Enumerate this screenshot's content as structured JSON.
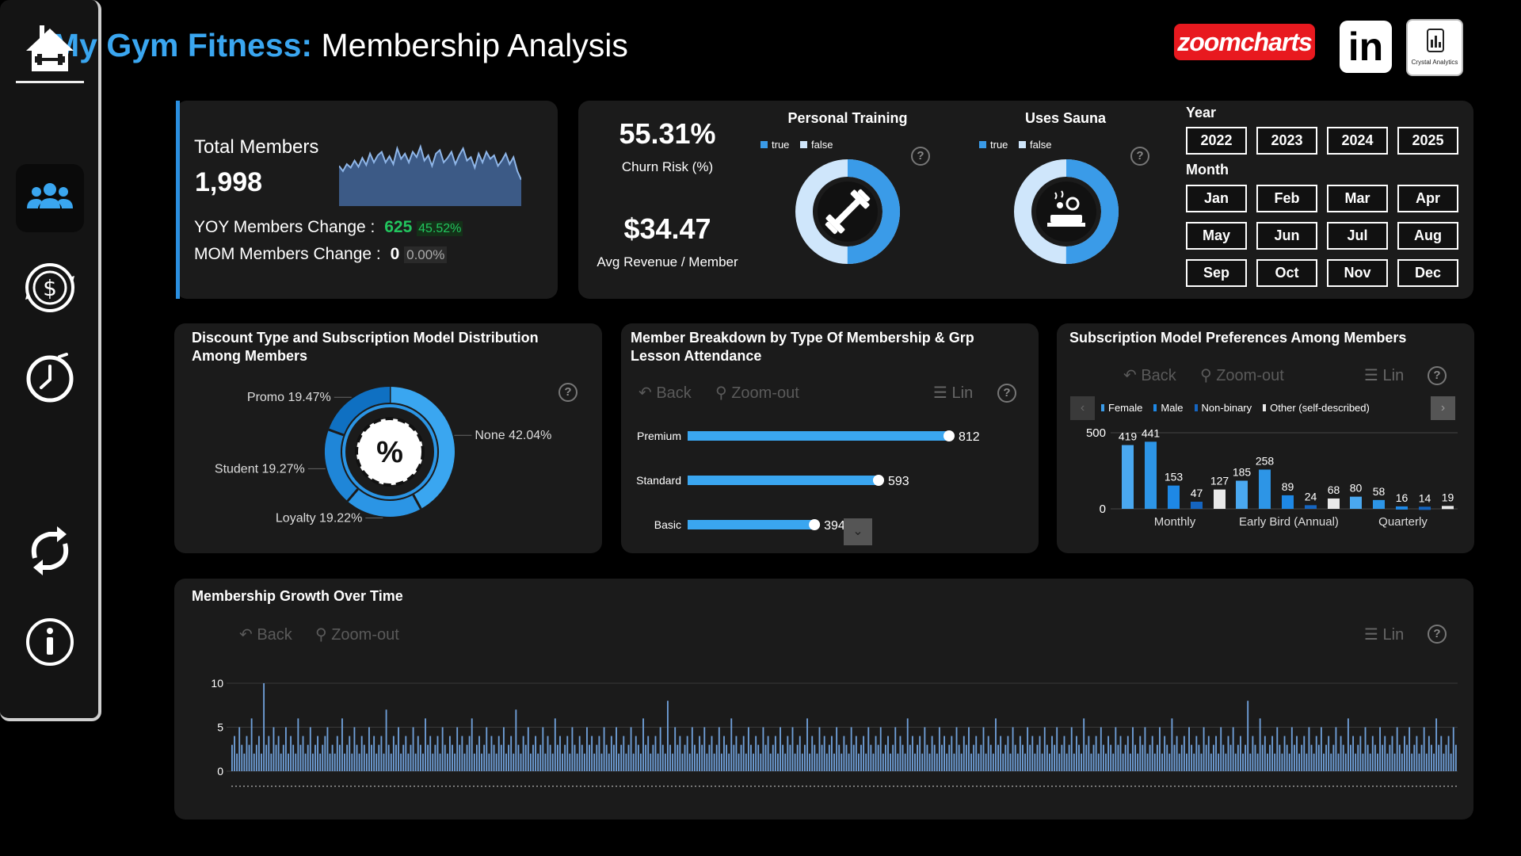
{
  "header": {
    "title_accent": "My Gym Fitness:",
    "title_rest": "Membership Analysis",
    "logos": {
      "zoomcharts": "zoomcharts",
      "linkedin": "in",
      "crystal": "Crystal Analytics"
    }
  },
  "sidebar": {
    "items": [
      {
        "name": "home",
        "icon": "home-dumbbell-icon"
      },
      {
        "name": "members",
        "icon": "users-icon",
        "selected": true
      },
      {
        "name": "revenue",
        "icon": "dollar-cycle-icon"
      },
      {
        "name": "time",
        "icon": "clock-icon"
      },
      {
        "name": "refresh",
        "icon": "refresh-icon"
      },
      {
        "name": "info",
        "icon": "info-icon"
      }
    ]
  },
  "kpi": {
    "total_label": "Total Members",
    "total_value": "1,998",
    "yoy_label": "YOY Members Change :",
    "yoy_value": "625",
    "yoy_pct": "45.52%",
    "mom_label": "MOM Members Change :",
    "mom_value": "0",
    "mom_pct": "0.00%",
    "sparkline": [
      46,
      40,
      48,
      44,
      52,
      45,
      55,
      47,
      60,
      50,
      58,
      62,
      50,
      57,
      48,
      66,
      54,
      60,
      50,
      62,
      56,
      68,
      52,
      58,
      46,
      60,
      64,
      50,
      55,
      62,
      48,
      58,
      66,
      52,
      56,
      44,
      60,
      50,
      62,
      54,
      58,
      46,
      52,
      60,
      48,
      56,
      40,
      30
    ]
  },
  "stats": {
    "churn_value": "55.31%",
    "churn_label": "Churn Risk (%)",
    "revenue_value": "$34.47",
    "revenue_label": "Avg Revenue / Member"
  },
  "donuts": {
    "personal_training": {
      "title": "Personal Training",
      "true_label": "true",
      "false_label": "false",
      "true_share": 0.5
    },
    "uses_sauna": {
      "title": "Uses Sauna",
      "true_label": "true",
      "false_label": "false",
      "true_share": 0.5
    }
  },
  "filters": {
    "year_label": "Year",
    "years": [
      "2022",
      "2023",
      "2024",
      "2025"
    ],
    "month_label": "Month",
    "months": [
      "Jan",
      "Feb",
      "Mar",
      "Apr",
      "May",
      "Jun",
      "Jul",
      "Aug",
      "Sep",
      "Oct",
      "Nov",
      "Dec"
    ]
  },
  "toolbar": {
    "back": "Back",
    "zoom_out": "Zoom-out",
    "lin": "Lin",
    "help": "?"
  },
  "discount": {
    "title": "Discount Type and Subscription Model Distribution Among Members",
    "center_glyph": "%",
    "chart_data": {
      "type": "pie",
      "labels": [
        "None",
        "Loyalty",
        "Student",
        "Promo"
      ],
      "values": [
        42.04,
        19.22,
        19.27,
        19.47
      ],
      "label_text": [
        "None 42.04%",
        "Loyalty 19.22%",
        "Student 19.27%",
        "Promo 19.47%"
      ]
    }
  },
  "breakdown": {
    "title": "Member Breakdown by Type Of Membership & Grp Lesson Attendance",
    "chart_data": {
      "type": "bar",
      "categories": [
        "Premium",
        "Standard",
        "Basic"
      ],
      "values": [
        812,
        593,
        394
      ]
    }
  },
  "preferences": {
    "title": "Subscription Model Preferences Among Members",
    "legend": [
      "Female",
      "Male",
      "Non-binary",
      "Other (self-described)"
    ],
    "colors": [
      "#3a9be8",
      "#1e88e5",
      "#1565c0",
      "#e9e9e9"
    ],
    "chart_data": {
      "type": "bar",
      "categories": [
        "Monthly",
        "Early Bird (Annual)",
        "Quarterly"
      ],
      "series": [
        {
          "name": "Female",
          "values": [
            419,
            185,
            80
          ]
        },
        {
          "name": "Male",
          "values": [
            441,
            258,
            58
          ]
        },
        {
          "name": "Non-binary",
          "values": [
            153,
            89,
            16
          ]
        },
        {
          "name": "Other (self-described)",
          "values": [
            47,
            24,
            14
          ]
        },
        {
          "name": "",
          "values": [
            127,
            68,
            19
          ]
        }
      ],
      "y_ticks": [
        "500",
        "0"
      ],
      "ylim": [
        0,
        500
      ]
    }
  },
  "growth": {
    "title": "Membership Growth Over Time",
    "chart_data": {
      "type": "bar",
      "y_ticks": [
        "10",
        "5",
        "0"
      ],
      "ylim": [
        0,
        10
      ],
      "values": [
        3,
        4,
        2,
        5,
        3,
        2,
        4,
        3,
        6,
        2,
        3,
        4,
        2,
        10,
        3,
        4,
        2,
        5,
        3,
        4,
        2,
        3,
        5,
        2,
        4,
        3,
        2,
        6,
        3,
        4,
        2,
        3,
        5,
        2,
        3,
        4,
        2,
        3,
        4,
        5,
        2,
        3,
        2,
        4,
        3,
        6,
        2,
        3,
        4,
        2,
        5,
        3,
        2,
        4,
        3,
        2,
        5,
        3,
        4,
        2,
        3,
        4,
        2,
        7,
        3,
        2,
        4,
        3,
        5,
        2,
        3,
        4,
        2,
        3,
        5,
        2,
        4,
        3,
        2,
        6,
        3,
        4,
        2,
        3,
        4,
        2,
        5,
        3,
        2,
        4,
        3,
        2,
        5,
        3,
        4,
        2,
        3,
        4,
        6,
        2,
        3,
        4,
        2,
        3,
        5,
        2,
        4,
        3,
        2,
        4,
        3,
        5,
        2,
        3,
        4,
        2,
        7,
        3,
        2,
        4,
        3,
        5,
        2,
        3,
        4,
        2,
        3,
        5,
        2,
        4,
        3,
        2,
        6,
        3,
        4,
        2,
        3,
        4,
        2,
        5,
        3,
        2,
        4,
        3,
        2,
        5,
        3,
        4,
        2,
        3,
        4,
        2,
        5,
        3,
        2,
        4,
        3,
        5,
        2,
        3,
        4,
        2,
        3,
        5,
        2,
        4,
        3,
        2,
        6,
        3,
        4,
        2,
        3,
        4,
        2,
        5,
        3,
        2,
        8,
        3,
        2,
        5,
        3,
        4,
        2,
        3,
        4,
        2,
        5,
        3,
        2,
        4,
        3,
        5,
        2,
        3,
        4,
        2,
        3,
        5,
        2,
        4,
        3,
        2,
        6,
        3,
        4,
        2,
        3,
        4,
        2,
        5,
        3,
        2,
        4,
        3,
        2,
        5,
        3,
        4,
        2,
        3,
        4,
        2,
        5,
        3,
        2,
        4,
        3,
        5,
        2,
        3,
        4,
        2,
        3,
        6,
        2,
        4,
        3,
        2,
        5,
        3,
        4,
        2,
        3,
        4,
        2,
        5,
        3,
        2,
        4,
        3,
        2,
        5,
        3,
        4,
        2,
        3,
        4,
        2,
        5,
        3,
        2,
        4,
        3,
        5,
        2,
        3,
        4,
        2,
        3,
        5,
        2,
        4,
        3,
        2,
        6,
        3,
        4,
        2,
        3,
        4,
        2,
        5,
        3,
        2,
        4,
        3,
        2,
        5,
        3,
        4,
        2,
        3,
        4,
        2,
        5,
        3,
        2,
        4,
        3,
        5,
        2,
        3,
        4,
        2,
        3,
        5,
        2,
        4,
        3,
        2,
        6,
        3,
        4,
        2,
        3,
        4,
        2,
        5,
        3,
        2,
        4,
        3,
        2,
        5,
        3,
        4,
        2,
        3,
        4,
        2,
        5,
        3,
        2,
        4,
        3,
        5,
        2,
        3,
        4,
        2,
        3,
        5,
        2,
        4,
        3,
        2,
        6,
        3,
        4,
        2,
        3,
        4,
        2,
        5,
        3,
        2,
        4,
        3,
        2,
        5,
        3,
        4,
        2,
        3,
        4,
        2,
        5,
        3,
        2,
        4,
        3,
        5,
        2,
        3,
        4,
        2,
        3,
        5,
        2,
        4,
        3,
        2,
        6,
        3,
        4,
        2,
        3,
        4,
        2,
        5,
        3,
        2,
        4,
        3,
        2,
        5,
        3,
        4,
        2,
        3,
        4,
        2,
        5,
        3,
        2,
        4,
        3,
        5,
        2,
        3,
        4,
        2,
        3,
        8,
        2,
        4,
        3,
        2,
        6,
        3,
        4,
        2,
        3,
        4,
        2,
        5,
        3,
        2,
        4,
        3,
        2,
        5,
        3,
        4,
        2,
        3,
        4,
        2,
        5,
        3,
        2,
        4,
        3,
        5,
        2,
        3,
        4,
        2,
        3,
        5,
        2,
        4,
        3,
        2,
        6,
        3,
        4,
        2,
        3,
        4,
        2,
        5,
        3,
        2,
        4,
        3,
        2,
        5,
        3,
        4,
        2,
        3,
        4,
        2,
        5,
        3,
        2,
        4,
        3,
        5,
        2,
        3,
        4,
        2,
        3,
        5,
        2,
        4,
        3,
        2,
        6,
        3,
        4,
        2,
        3,
        4,
        2,
        5,
        3
      ]
    }
  }
}
